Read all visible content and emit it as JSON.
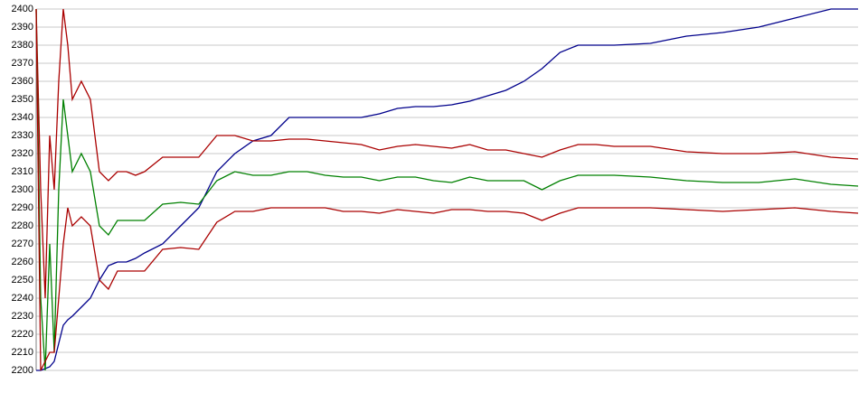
{
  "chart_data": {
    "type": "line",
    "x": [
      40,
      45,
      50,
      55,
      60,
      65,
      70,
      75,
      80,
      90,
      100,
      110,
      120,
      130,
      140,
      150,
      160,
      180,
      200,
      220,
      240,
      260,
      280,
      300,
      320,
      340,
      360,
      380,
      400,
      420,
      440,
      460,
      480,
      500,
      520,
      540,
      560,
      580,
      600,
      620,
      640,
      660,
      680,
      720,
      760,
      800,
      840,
      880,
      920,
      950
    ],
    "xlim": [
      40,
      950
    ],
    "ylim": [
      2200,
      2400
    ],
    "yticks": [
      2200,
      2210,
      2220,
      2230,
      2240,
      2250,
      2260,
      2270,
      2280,
      2290,
      2300,
      2310,
      2320,
      2330,
      2340,
      2350,
      2360,
      2370,
      2380,
      2390,
      2400
    ],
    "grid": true,
    "series": [
      {
        "color": "#00008b",
        "values": [
          2200,
          2200,
          2201,
          2202,
          2205,
          2215,
          2225,
          2228,
          2230,
          2235,
          2240,
          2250,
          2258,
          2260,
          2260,
          2262,
          2265,
          2270,
          2280,
          2290,
          2310,
          2320,
          2327,
          2330,
          2340,
          2340,
          2340,
          2340,
          2340,
          2342,
          2345,
          2346,
          2346,
          2347,
          2349,
          2352,
          2355,
          2360,
          2367,
          2376,
          2380,
          2380,
          2380,
          2381,
          2385,
          2387,
          2390,
          2395,
          2400,
          2400
        ]
      },
      {
        "color": "#aa0000",
        "values": [
          2400,
          2300,
          2240,
          2330,
          2300,
          2360,
          2400,
          2380,
          2350,
          2360,
          2350,
          2310,
          2305,
          2310,
          2310,
          2308,
          2310,
          2318,
          2318,
          2318,
          2330,
          2330,
          2327,
          2327,
          2328,
          2328,
          2327,
          2326,
          2325,
          2322,
          2324,
          2325,
          2324,
          2323,
          2325,
          2322,
          2322,
          2320,
          2318,
          2322,
          2325,
          2325,
          2324,
          2324,
          2321,
          2320,
          2320,
          2321,
          2318,
          2317
        ]
      },
      {
        "color": "#008000",
        "values": [
          2400,
          2240,
          2200,
          2270,
          2210,
          2300,
          2350,
          2330,
          2310,
          2320,
          2310,
          2280,
          2275,
          2283,
          2283,
          2283,
          2283,
          2292,
          2293,
          2292,
          2305,
          2310,
          2308,
          2308,
          2310,
          2310,
          2308,
          2307,
          2307,
          2305,
          2307,
          2307,
          2305,
          2304,
          2307,
          2305,
          2305,
          2305,
          2300,
          2305,
          2308,
          2308,
          2308,
          2307,
          2305,
          2304,
          2304,
          2306,
          2303,
          2302
        ]
      },
      {
        "color": "#aa0000",
        "values": [
          2400,
          2200,
          2205,
          2210,
          2210,
          2240,
          2270,
          2290,
          2280,
          2285,
          2280,
          2250,
          2245,
          2255,
          2255,
          2255,
          2255,
          2267,
          2268,
          2267,
          2282,
          2288,
          2288,
          2290,
          2290,
          2290,
          2290,
          2288,
          2288,
          2287,
          2289,
          2288,
          2287,
          2289,
          2289,
          2288,
          2288,
          2287,
          2283,
          2287,
          2290,
          2290,
          2290,
          2290,
          2289,
          2288,
          2289,
          2290,
          2288,
          2287
        ]
      }
    ]
  }
}
